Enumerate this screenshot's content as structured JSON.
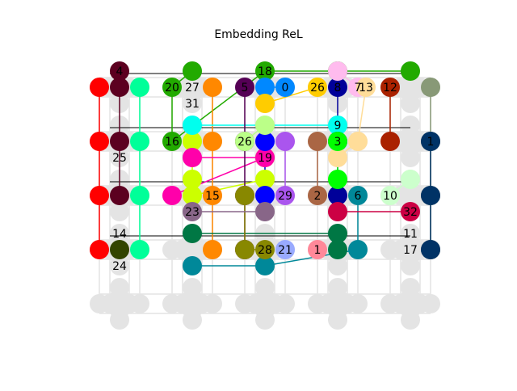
{
  "title": "Embedding ReL",
  "background_nodes": [
    {
      "col": 0,
      "row": 0
    },
    {
      "col": 0,
      "row": 1
    },
    {
      "col": 0,
      "row": 2
    },
    {
      "col": 0,
      "row": 3
    },
    {
      "col": 0,
      "row": 4
    },
    {
      "col": 1,
      "row": 0
    },
    {
      "col": 1,
      "row": 1
    },
    {
      "col": 1,
      "row": 2
    },
    {
      "col": 1,
      "row": 3
    },
    {
      "col": 1,
      "row": 4
    },
    {
      "col": 2,
      "row": 0
    },
    {
      "col": 2,
      "row": 1
    },
    {
      "col": 2,
      "row": 2
    },
    {
      "col": 2,
      "row": 3
    },
    {
      "col": 2,
      "row": 4
    },
    {
      "col": 3,
      "row": 0
    },
    {
      "col": 3,
      "row": 1
    },
    {
      "col": 3,
      "row": 2
    },
    {
      "col": 3,
      "row": 3
    },
    {
      "col": 3,
      "row": 4
    },
    {
      "col": 4,
      "row": 0
    },
    {
      "col": 4,
      "row": 1
    },
    {
      "col": 4,
      "row": 2
    },
    {
      "col": 4,
      "row": 3
    },
    {
      "col": 4,
      "row": 4
    }
  ],
  "embedding_chains": [
    {
      "color": "#ff0000",
      "nodes": [
        [
          0,
          0,
          "W"
        ],
        [
          0,
          1,
          "W"
        ],
        [
          0,
          2,
          "W"
        ],
        [
          0,
          3,
          "W"
        ]
      ]
    },
    {
      "color": "#5c0020",
      "nodes": [
        [
          0,
          0,
          "N"
        ],
        [
          0,
          0,
          "C"
        ],
        [
          0,
          1,
          "C"
        ],
        [
          0,
          2,
          "C"
        ]
      ]
    },
    {
      "color": "#00ff99",
      "nodes": [
        [
          0,
          0,
          "E"
        ],
        [
          0,
          1,
          "E"
        ],
        [
          0,
          2,
          "E"
        ],
        [
          0,
          3,
          "E"
        ]
      ]
    },
    {
      "color": "#22aa00",
      "nodes": [
        [
          1,
          0,
          "N"
        ],
        [
          1,
          0,
          "W"
        ],
        [
          1,
          1,
          "W"
        ],
        [
          2,
          0,
          "N"
        ],
        [
          3,
          0,
          "N"
        ],
        [
          4,
          0,
          "N"
        ]
      ]
    },
    {
      "color": "#ff8800",
      "nodes": [
        [
          1,
          0,
          "E"
        ],
        [
          1,
          1,
          "E"
        ],
        [
          1,
          2,
          "E"
        ],
        [
          1,
          3,
          "E"
        ]
      ]
    },
    {
      "color": "#ccff00",
      "nodes": [
        [
          1,
          1,
          "C"
        ],
        [
          1,
          2,
          "N"
        ],
        [
          1,
          2,
          "C"
        ],
        [
          2,
          2,
          "N"
        ],
        [
          2,
          1,
          "S"
        ]
      ]
    },
    {
      "color": "#00ffee",
      "nodes": [
        [
          1,
          1,
          "N"
        ],
        [
          3,
          1,
          "N"
        ]
      ]
    },
    {
      "color": "#ff00aa",
      "nodes": [
        [
          1,
          1,
          "S"
        ],
        [
          2,
          1,
          "S"
        ],
        [
          1,
          2,
          "W"
        ]
      ]
    },
    {
      "color": "#007744",
      "nodes": [
        [
          1,
          3,
          "N"
        ],
        [
          3,
          3,
          "N"
        ],
        [
          3,
          3,
          "C"
        ]
      ]
    },
    {
      "color": "#008899",
      "nodes": [
        [
          1,
          3,
          "S"
        ],
        [
          2,
          3,
          "S"
        ],
        [
          3,
          3,
          "E"
        ],
        [
          3,
          2,
          "E"
        ]
      ]
    },
    {
      "color": "#550055",
      "nodes": [
        [
          2,
          0,
          "W"
        ],
        [
          2,
          1,
          "W"
        ],
        [
          2,
          2,
          "W"
        ],
        [
          2,
          3,
          "W"
        ]
      ]
    },
    {
      "color": "#0088ff",
      "nodes": [
        [
          2,
          0,
          "C"
        ],
        [
          2,
          0,
          "E"
        ]
      ]
    },
    {
      "color": "#ffcc00",
      "nodes": [
        [
          2,
          0,
          "S"
        ],
        [
          3,
          0,
          "W"
        ]
      ]
    },
    {
      "color": "#aa55ee",
      "nodes": [
        [
          2,
          1,
          "E"
        ],
        [
          2,
          2,
          "E"
        ]
      ]
    },
    {
      "color": "#0000ff",
      "nodes": [
        [
          2,
          1,
          "C"
        ],
        [
          2,
          2,
          "C"
        ]
      ]
    },
    {
      "color": "#bbff88",
      "nodes": [
        [
          2,
          1,
          "N"
        ],
        [
          2,
          1,
          "NW"
        ]
      ]
    },
    {
      "color": "#888800",
      "nodes": [
        [
          2,
          2,
          "NW"
        ],
        [
          2,
          3,
          "NW"
        ],
        [
          2,
          3,
          "C"
        ]
      ]
    },
    {
      "color": "#99aaff",
      "nodes": [
        [
          2,
          3,
          "E"
        ]
      ]
    },
    {
      "color": "#ff8899",
      "nodes": [
        [
          3,
          3,
          "W"
        ]
      ]
    },
    {
      "color": "#aa6644",
      "nodes": [
        [
          3,
          1,
          "W"
        ],
        [
          3,
          2,
          "W"
        ]
      ]
    },
    {
      "color": "#000099",
      "nodes": [
        [
          3,
          0,
          "C"
        ],
        [
          3,
          1,
          "C"
        ],
        [
          3,
          2,
          "C"
        ]
      ]
    },
    {
      "color": "#ffbbee",
      "nodes": [
        [
          3,
          0,
          "N"
        ],
        [
          3,
          0,
          "E"
        ]
      ]
    },
    {
      "color": "#ffdd99",
      "nodes": [
        [
          3,
          0,
          "E2"
        ],
        [
          3,
          1,
          "E"
        ],
        [
          3,
          1,
          "S"
        ]
      ]
    },
    {
      "color": "#00ff00",
      "nodes": [
        [
          3,
          1,
          "NE"
        ],
        [
          3,
          2,
          "N"
        ]
      ]
    },
    {
      "color": "#cc0044",
      "nodes": [
        [
          3,
          2,
          "S"
        ],
        [
          4,
          2,
          "S"
        ]
      ]
    },
    {
      "color": "#aa2200",
      "nodes": [
        [
          4,
          0,
          "W"
        ],
        [
          4,
          1,
          "W"
        ]
      ]
    },
    {
      "color": "#ccffcc",
      "nodes": [
        [
          4,
          2,
          "N"
        ],
        [
          4,
          2,
          "W"
        ]
      ]
    },
    {
      "color": "#889977",
      "nodes": [
        [
          4,
          0,
          "E"
        ],
        [
          4,
          1,
          "E"
        ],
        [
          4,
          2,
          "E"
        ],
        [
          4,
          3,
          "E"
        ]
      ]
    },
    {
      "color": "#003366",
      "nodes": [
        [
          4,
          1,
          "EE"
        ],
        [
          4,
          2,
          "EE"
        ],
        [
          4,
          3,
          "EE"
        ]
      ]
    },
    {
      "color": "#334400",
      "nodes": [
        [
          0,
          3,
          "C"
        ]
      ]
    },
    {
      "color": "#886688",
      "nodes": [
        [
          1,
          2,
          "S"
        ],
        [
          2,
          2,
          "S"
        ]
      ]
    }
  ],
  "labels": [
    {
      "text": "4",
      "col": 0,
      "row": 0,
      "pos": "N"
    },
    {
      "text": "20",
      "col": 1,
      "row": 0,
      "pos": "W"
    },
    {
      "text": "27",
      "col": 1,
      "row": 0,
      "pos": "C"
    },
    {
      "text": "31",
      "col": 1,
      "row": 0,
      "pos": "S"
    },
    {
      "text": "5",
      "col": 2,
      "row": 0,
      "pos": "W"
    },
    {
      "text": "18",
      "col": 2,
      "row": 0,
      "pos": "N"
    },
    {
      "text": "0",
      "col": 2,
      "row": 0,
      "pos": "E"
    },
    {
      "text": "26",
      "col": 3,
      "row": 0,
      "pos": "W"
    },
    {
      "text": "8",
      "col": 3,
      "row": 0,
      "pos": "C"
    },
    {
      "text": "7",
      "col": 3,
      "row": 0,
      "pos": "E"
    },
    {
      "text": "13",
      "col": 3,
      "row": 0,
      "pos": "E2"
    },
    {
      "text": "12",
      "col": 4,
      "row": 0,
      "pos": "W"
    },
    {
      "text": "25",
      "col": 0,
      "row": 1,
      "pos": "S"
    },
    {
      "text": "16",
      "col": 1,
      "row": 1,
      "pos": "W"
    },
    {
      "text": "26",
      "col": 2,
      "row": 1,
      "pos": "W"
    },
    {
      "text": "19",
      "col": 2,
      "row": 1,
      "pos": "S"
    },
    {
      "text": "9",
      "col": 3,
      "row": 1,
      "pos": "N"
    },
    {
      "text": "3",
      "col": 3,
      "row": 1,
      "pos": "NE"
    },
    {
      "text": "1",
      "col": 4,
      "row": 1,
      "pos": "E"
    },
    {
      "text": "15",
      "col": 1,
      "row": 2,
      "pos": "E"
    },
    {
      "text": "23",
      "col": 1,
      "row": 2,
      "pos": "S"
    },
    {
      "text": "29",
      "col": 2,
      "row": 2,
      "pos": "E"
    },
    {
      "text": "2",
      "col": 3,
      "row": 2,
      "pos": "W"
    },
    {
      "text": "6",
      "col": 3,
      "row": 2,
      "pos": "E"
    },
    {
      "text": "10",
      "col": 4,
      "row": 2,
      "pos": "W"
    },
    {
      "text": "32",
      "col": 4,
      "row": 2,
      "pos": "S"
    },
    {
      "text": "14",
      "col": 0,
      "row": 3,
      "pos": "N"
    },
    {
      "text": "24",
      "col": 0,
      "row": 3,
      "pos": "S"
    },
    {
      "text": "28",
      "col": 2,
      "row": 3,
      "pos": "C"
    },
    {
      "text": "21",
      "col": 2,
      "row": 3,
      "pos": "E"
    },
    {
      "text": "1",
      "col": 3,
      "row": 3,
      "pos": "W"
    },
    {
      "text": "11",
      "col": 4,
      "row": 3,
      "pos": "N"
    },
    {
      "text": "17",
      "col": 4,
      "row": 3,
      "pos": "C"
    }
  ],
  "colors": {
    "background_node": "#e4e4e4",
    "background_edge": "#e4e4e4",
    "edge": "#000000"
  }
}
